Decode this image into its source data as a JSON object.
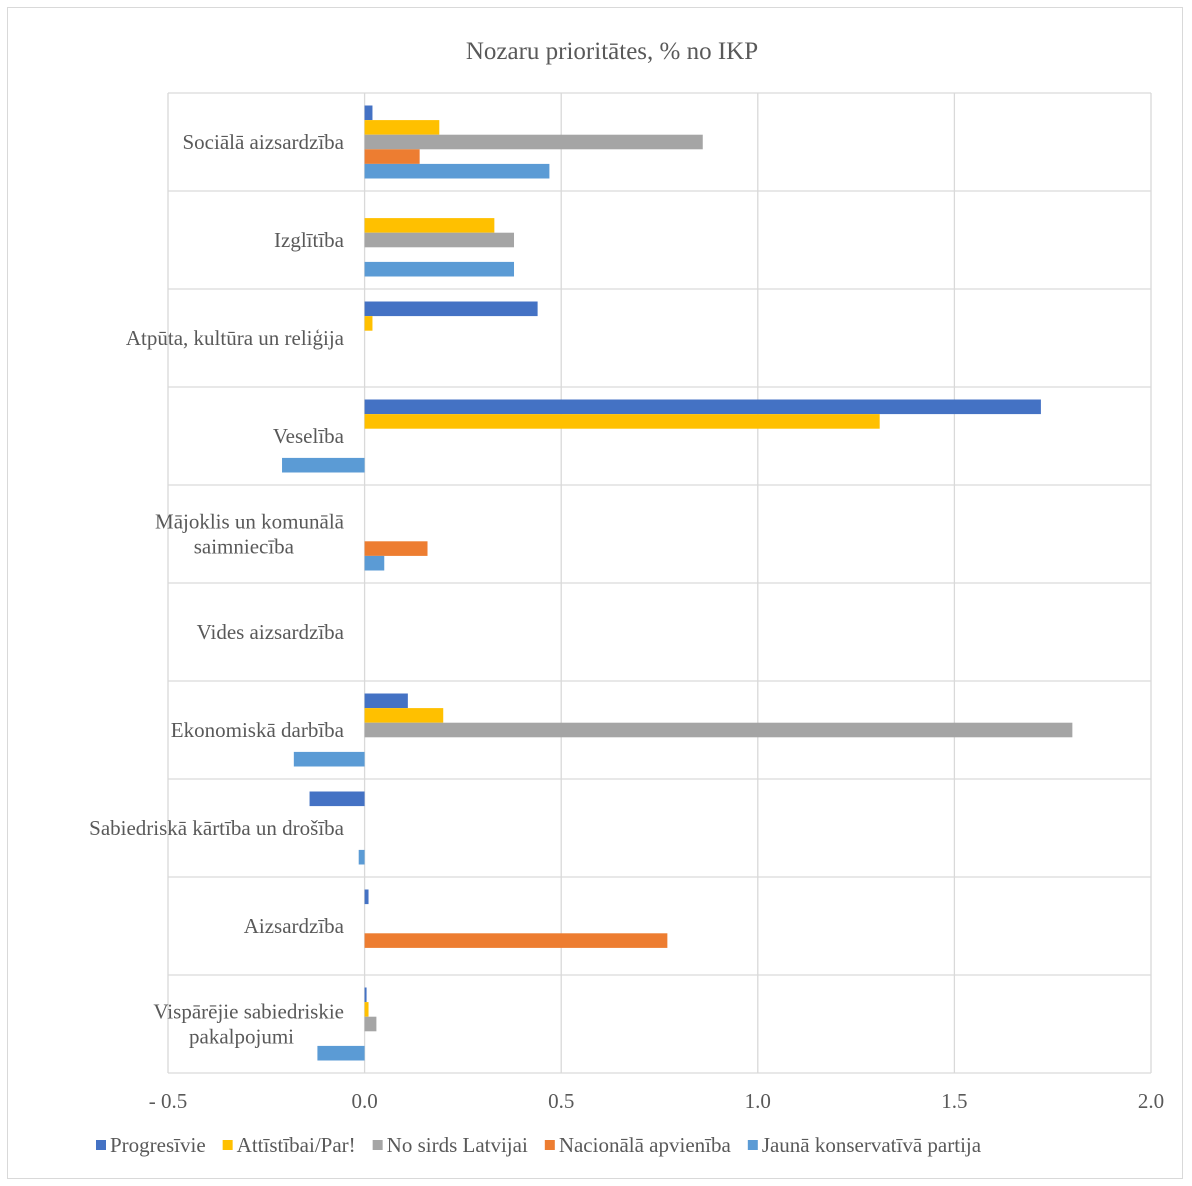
{
  "chart_data": {
    "type": "bar",
    "orientation": "horizontal",
    "title": "Nozaru prioritātes, % no IKP",
    "xlabel": "",
    "ylabel": "",
    "xlim": [
      -0.5,
      2.0
    ],
    "x_ticks": [
      -0.5,
      0.0,
      0.5,
      1.0,
      1.5,
      2.0
    ],
    "x_tick_labels": [
      "- 0.5",
      "0.0",
      "0.5",
      "1.0",
      "1.5",
      "2.0"
    ],
    "grid": true,
    "legend_position": "bottom",
    "categories": [
      "Sociālā aizsardzība",
      "Izglītība",
      "Atpūta, kultūra un reliģija",
      "Veselība",
      "Mājoklis un komunālā saimniecība",
      "Vides aizsardzība",
      "Ekonomiskā darbība",
      "Sabiedriskā kārtība un drošība",
      "Aizsardzība",
      "Vispārējie sabiedriskie pakalpojumi"
    ],
    "category_label_lines": [
      [
        "Sociālā aizsardzība"
      ],
      [
        "Izglītība"
      ],
      [
        "Atpūta, kultūra un reliģija"
      ],
      [
        "Veselība"
      ],
      [
        "Mājoklis un komunālā",
        "saimniecība"
      ],
      [
        "Vides aizsardzība"
      ],
      [
        "Ekonomiskā darbība"
      ],
      [
        "Sabiedriskā kārtība un drošība"
      ],
      [
        "Aizsardzība"
      ],
      [
        "Vispārējie sabiedriskie",
        "pakalpojumi"
      ]
    ],
    "series": [
      {
        "name": "Progresīvie",
        "color": "#4472c4",
        "values": [
          0.02,
          0,
          0.44,
          1.72,
          0,
          0,
          0.11,
          -0.14,
          0.01,
          0.005
        ]
      },
      {
        "name": "Attīstībai/Par!",
        "color": "#ffc000",
        "values": [
          0.19,
          0.33,
          0.02,
          1.31,
          0,
          0,
          0.2,
          0,
          0,
          0.01
        ]
      },
      {
        "name": "No sirds Latvijai",
        "color": "#a5a5a5",
        "values": [
          0.86,
          0.38,
          0,
          0,
          0,
          0,
          1.8,
          0,
          0,
          0.03
        ]
      },
      {
        "name": "Nacionālā apvienība",
        "color": "#ed7d31",
        "values": [
          0.14,
          0,
          0,
          0,
          0.16,
          0,
          0,
          0,
          0.77,
          0
        ]
      },
      {
        "name": "Jaunā konservatīvā partija",
        "color": "#5b9bd5",
        "values": [
          0.47,
          0.38,
          0,
          -0.21,
          0.05,
          0,
          -0.18,
          -0.015,
          0,
          -0.12
        ]
      }
    ]
  }
}
